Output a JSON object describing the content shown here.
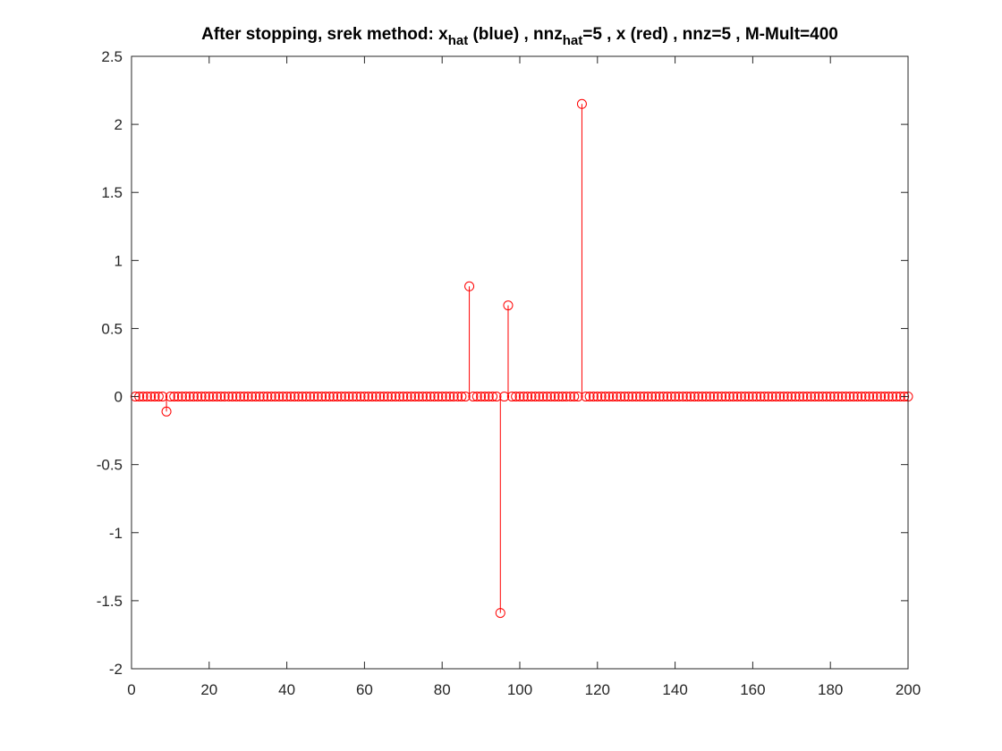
{
  "chart_data": {
    "type": "stem",
    "title": {
      "parts": [
        {
          "text": "After stopping, srek method: x",
          "sub": false
        },
        {
          "text": "hat",
          "sub": true
        },
        {
          "text": " (blue) , nnz",
          "sub": false
        },
        {
          "text": "hat",
          "sub": true
        },
        {
          "text": "=5 , x (red) , nnz=5 , M-Mult=400",
          "sub": false
        }
      ]
    },
    "xlim": [
      0,
      200
    ],
    "ylim": [
      -2,
      2.5
    ],
    "xticks": [
      0,
      20,
      40,
      60,
      80,
      100,
      120,
      140,
      160,
      180,
      200
    ],
    "xtick_labels": [
      "0",
      "20",
      "40",
      "60",
      "80",
      "100",
      "120",
      "140",
      "160",
      "180",
      "200"
    ],
    "yticks": [
      -2,
      -1.5,
      -1,
      -0.5,
      0,
      0.5,
      1,
      1.5,
      2,
      2.5
    ],
    "ytick_labels": [
      "-2",
      "-1.5",
      "-1",
      "-0.5",
      "0",
      "0.5",
      "1",
      "1.5",
      "2",
      "2.5"
    ],
    "grid": false,
    "box": true,
    "series": [
      {
        "color": "#ff0000",
        "marker": "circle-open",
        "n": 200,
        "baseline": 0,
        "nonzeros": [
          {
            "x": 9,
            "y": -0.11
          },
          {
            "x": 87,
            "y": 0.81
          },
          {
            "x": 95,
            "y": -1.59
          },
          {
            "x": 97,
            "y": 0.67
          },
          {
            "x": 116,
            "y": 2.15
          }
        ]
      }
    ]
  }
}
